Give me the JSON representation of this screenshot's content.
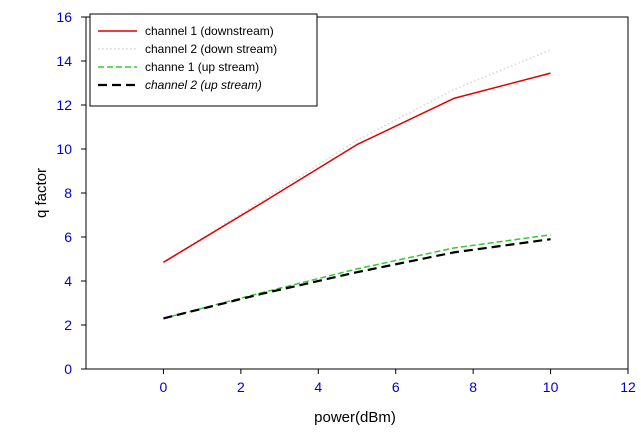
{
  "chart_data": {
    "type": "line",
    "title": "",
    "xlabel": "power(dBm)",
    "ylabel": "q factor",
    "xlim": [
      -2,
      12
    ],
    "ylim": [
      0,
      16
    ],
    "xticks": [
      0,
      2,
      4,
      6,
      8,
      10,
      12
    ],
    "yticks": [
      0,
      2,
      4,
      6,
      8,
      10,
      12,
      14,
      16
    ],
    "grid": false,
    "legend_position": "top-left",
    "tick_label_color": "#0000cc",
    "series": [
      {
        "name": "channel 1 (downstream)",
        "color": "#e00000",
        "style": "solid",
        "x": [
          0,
          2.5,
          5,
          7.5,
          10
        ],
        "y": [
          4.85,
          7.5,
          10.2,
          12.3,
          13.45
        ]
      },
      {
        "name": "channel 2 (down stream)",
        "color": "#d8d8d8",
        "style": "dotted",
        "x": [
          0,
          2.5,
          5,
          7.5,
          10
        ],
        "y": [
          4.85,
          7.6,
          10.4,
          12.7,
          14.5
        ]
      },
      {
        "name": "channe 1 (up stream)",
        "color": "#33cc33",
        "style": "dashed",
        "x": [
          0,
          2.5,
          5,
          7.5,
          10
        ],
        "y": [
          2.3,
          3.45,
          4.55,
          5.5,
          6.1
        ]
      },
      {
        "name": "channel 2 (up stream)",
        "color": "#000000",
        "style": "longdash",
        "x": [
          0,
          2.5,
          5,
          7.5,
          10
        ],
        "y": [
          2.3,
          3.4,
          4.4,
          5.3,
          5.9
        ]
      }
    ]
  }
}
